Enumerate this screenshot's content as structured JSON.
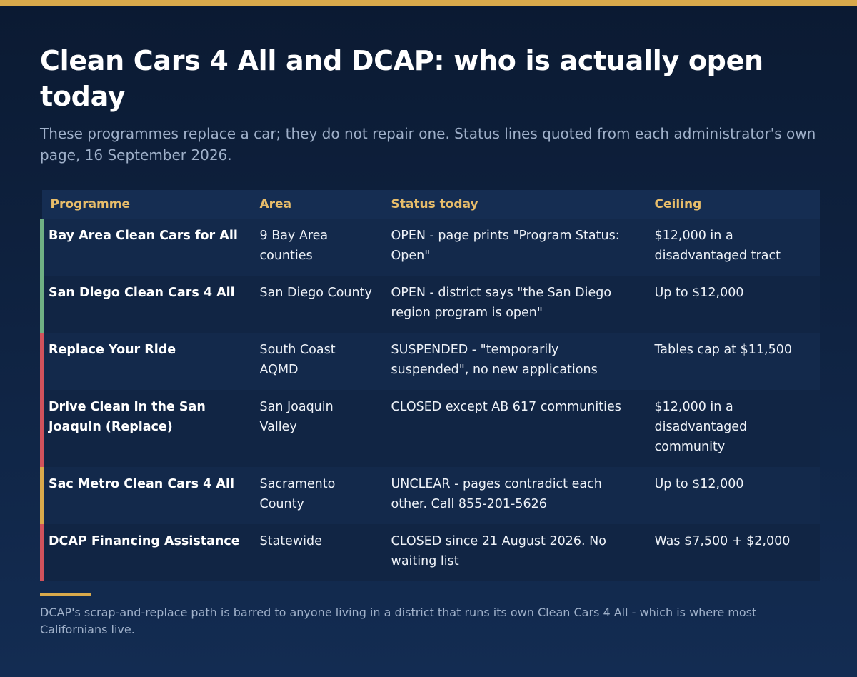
{
  "title": "Clean Cars 4 All and DCAP: who is actually open today",
  "subtitle": "These programmes replace a car; they do not repair one. Status lines quoted from each administrator's own page, 16 September 2026.",
  "colors": {
    "accent": "#d9a94b",
    "header_text": "#e8bd6a",
    "open": "#6fb083",
    "closed": "#d0525c",
    "unclear": "#d9a94b"
  },
  "table": {
    "headers": [
      "Programme",
      "Area",
      "Status today",
      "Ceiling"
    ],
    "rows": [
      {
        "programme": "Bay Area Clean Cars for All",
        "area": "9 Bay Area counties",
        "status": "OPEN - page prints \"Program Status: Open\"",
        "ceiling": "$12,000 in a disadvantaged tract",
        "status_class": "open"
      },
      {
        "programme": "San Diego Clean Cars 4 All",
        "area": "San Diego County",
        "status": "OPEN - district says \"the San Diego region program is open\"",
        "ceiling": "Up to $12,000",
        "status_class": "open"
      },
      {
        "programme": "Replace Your Ride",
        "area": "South Coast AQMD",
        "status": "SUSPENDED - \"temporarily suspended\", no new applications",
        "ceiling": "Tables cap at $11,500",
        "status_class": "closed"
      },
      {
        "programme": "Drive Clean in the San Joaquin (Replace)",
        "area": "San Joaquin Valley",
        "status": "CLOSED except AB 617 communities",
        "ceiling": "$12,000 in a disadvantaged community",
        "status_class": "closed"
      },
      {
        "programme": "Sac Metro Clean Cars 4 All",
        "area": "Sacramento County",
        "status": "UNCLEAR - pages contradict each other. Call 855-201-5626",
        "ceiling": "Up to $12,000",
        "status_class": "unclear"
      },
      {
        "programme": "DCAP Financing Assistance",
        "area": "Statewide",
        "status": "CLOSED since 21 August 2026. No waiting list",
        "ceiling": "Was $7,500 + $2,000",
        "status_class": "closed"
      }
    ]
  },
  "footnote": "DCAP's scrap-and-replace path is barred to anyone living in a district that runs its own Clean Cars 4 All - which is where most Californians live."
}
